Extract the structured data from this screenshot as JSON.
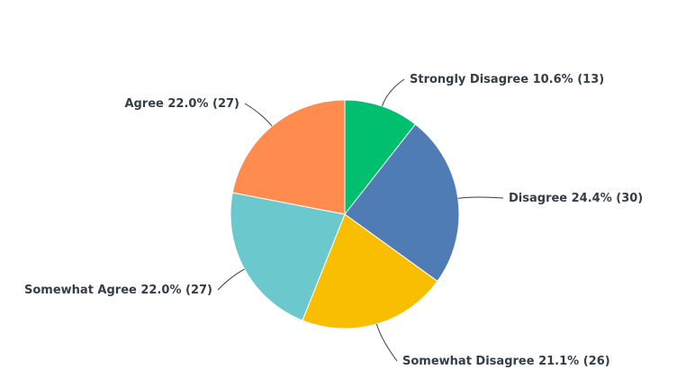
{
  "chart_data": {
    "type": "pie",
    "categories": [
      "Strongly Disagree",
      "Disagree",
      "Somewhat Disagree",
      "Somewhat Agree",
      "Agree"
    ],
    "values": [
      10.6,
      24.4,
      21.1,
      22.0,
      22.0
    ],
    "value_labels": [
      "10.6% (13)",
      "24.4% (30)",
      "21.1% (26)",
      "22.0% (27)",
      "22.0% (27)"
    ],
    "colors": [
      "#00bf6f",
      "#507cb6",
      "#f9be00",
      "#6bc8cd",
      "#ff8b4f"
    ]
  }
}
